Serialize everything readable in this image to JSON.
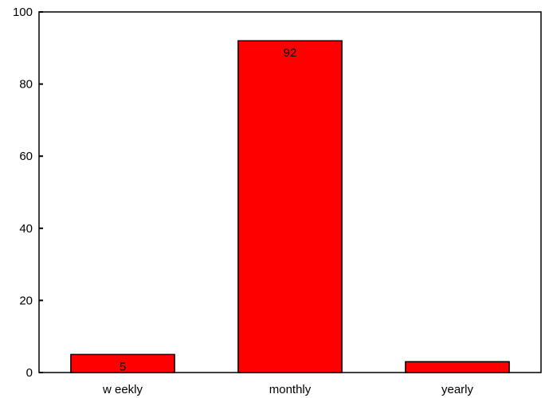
{
  "chart_data": {
    "type": "bar",
    "categories": [
      "weekly",
      "monthly",
      "yearly"
    ],
    "values": [
      5,
      92,
      3
    ],
    "data_labels": [
      "5",
      "92",
      ""
    ],
    "ylim": [
      0,
      100
    ],
    "yticks": [
      0,
      20,
      40,
      60,
      80,
      100
    ],
    "ytick_labels": [
      "0",
      "20",
      "40",
      "60",
      "80",
      "100"
    ],
    "xtick_labels": [
      "w eekly",
      "monthly",
      "yearly"
    ],
    "title": "",
    "xlabel": "",
    "ylabel": "",
    "grid": false,
    "legend": "none",
    "bar_color": "#ff0000",
    "bar_outline_color": "#000000",
    "background_color": "#ffffff"
  }
}
